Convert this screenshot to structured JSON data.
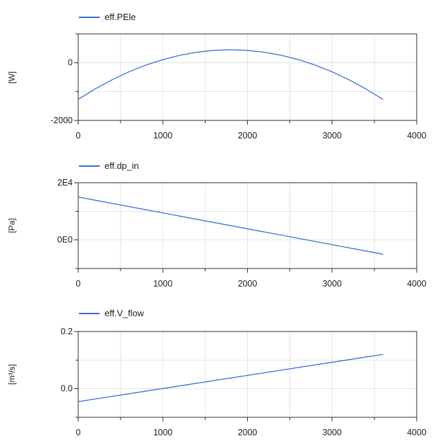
{
  "colors": {
    "curve": "#3470d6",
    "grid": "#e2e2e2",
    "frame": "#2b2b2b",
    "tick": "#2b2b2b",
    "label_text": "#1a1a1a",
    "background": "#ffffff"
  },
  "x_axis": {
    "min": 0,
    "max": 4000,
    "tick_values": [
      0,
      1000,
      2000,
      3000,
      4000
    ],
    "tick_labels": [
      "0",
      "1000",
      "2000",
      "3000",
      "4000"
    ],
    "minor_step": 500
  },
  "chart_data": [
    {
      "type": "line",
      "legend": "eff.PEle",
      "ylabel": "[W]",
      "xlim": [
        0,
        4000
      ],
      "ylim": [
        -2000,
        1000
      ],
      "grid": true,
      "legend_position": "top-left",
      "y_ticks": [
        {
          "value": 1000,
          "label": "",
          "grid": false
        },
        {
          "value": 0,
          "label": "0",
          "grid": true
        },
        {
          "value": -1000,
          "label": "",
          "grid": true
        },
        {
          "value": -2000,
          "label": "-2000",
          "grid": false
        }
      ],
      "series": [
        {
          "name": "eff.PEle",
          "x": [
            0,
            200,
            400,
            600,
            800,
            1000,
            1200,
            1400,
            1600,
            1800,
            2000,
            2200,
            2400,
            2600,
            2800,
            3000,
            3200,
            3400,
            3600
          ],
          "y": [
            -1270,
            -909,
            -591,
            -315,
            -81,
            110,
            259,
            365,
            429,
            450,
            429,
            365,
            259,
            110,
            -81,
            -315,
            -591,
            -909,
            -1270
          ]
        }
      ]
    },
    {
      "type": "line",
      "legend": "eff.dp_in",
      "ylabel": "[Pa]",
      "xlim": [
        0,
        4000
      ],
      "ylim": [
        -10000,
        20000
      ],
      "grid": true,
      "legend_position": "top-left",
      "y_ticks": [
        {
          "value": 20000,
          "label": "2E4",
          "grid": false
        },
        {
          "value": 10000,
          "label": "",
          "grid": true
        },
        {
          "value": 0,
          "label": "0E0",
          "grid": true
        },
        {
          "value": -10000,
          "label": "",
          "grid": false
        }
      ],
      "series": [
        {
          "name": "eff.dp_in",
          "x": [
            0,
            3600
          ],
          "y": [
            15000,
            -5000
          ]
        }
      ]
    },
    {
      "type": "line",
      "legend": "eff.V_flow",
      "ylabel": "[m³/s]",
      "xlim": [
        0,
        4000
      ],
      "ylim": [
        -0.1,
        0.2
      ],
      "grid": true,
      "legend_position": "top-left",
      "y_ticks": [
        {
          "value": 0.2,
          "label": "0.2",
          "grid": false
        },
        {
          "value": 0.1,
          "label": "",
          "grid": true
        },
        {
          "value": 0.0,
          "label": "0.0",
          "grid": true
        },
        {
          "value": -0.1,
          "label": "",
          "grid": false
        }
      ],
      "series": [
        {
          "name": "eff.V_flow",
          "x": [
            0,
            3600
          ],
          "y": [
            -0.045,
            0.12
          ]
        }
      ]
    }
  ]
}
